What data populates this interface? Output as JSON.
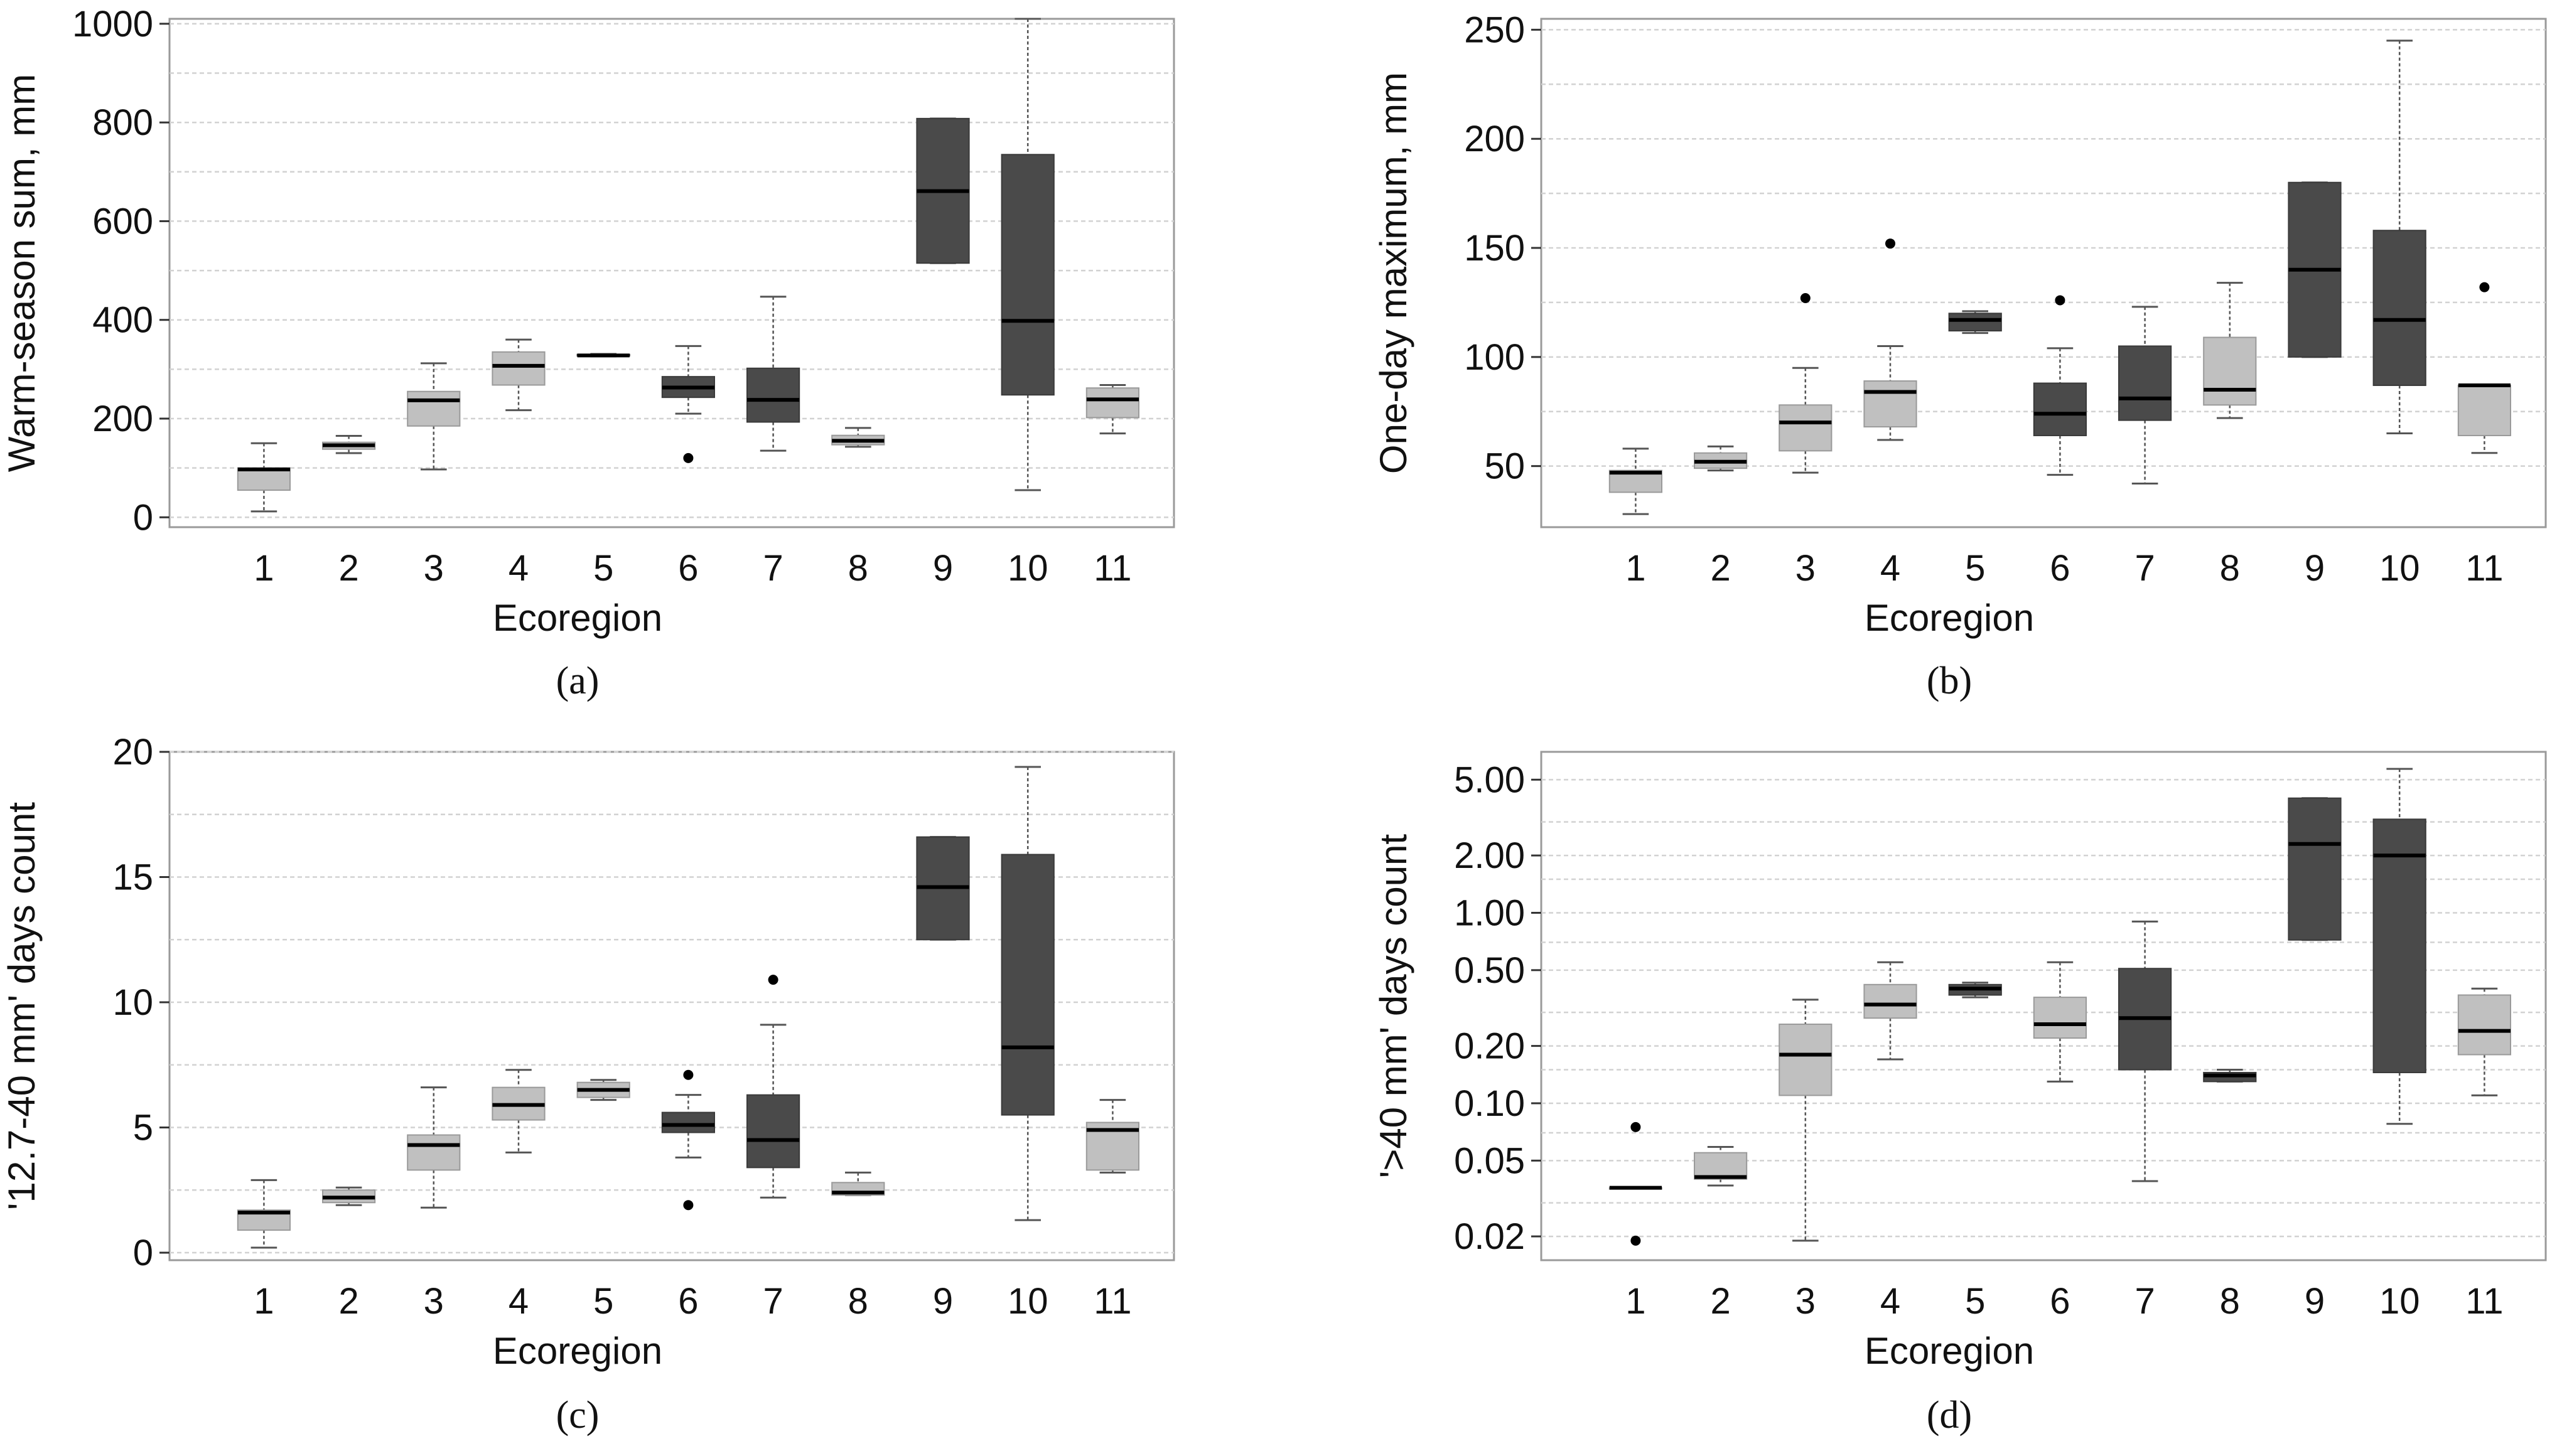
{
  "figure": {
    "captions": [
      "(a)",
      "(b)",
      "(c)",
      "(d)"
    ]
  },
  "colors": {
    "light_box": "#c0c0c0",
    "dark_box": "#4a4a4a",
    "background": "#ffffff",
    "plot_border": "#9a9a9a",
    "grid": "#d2d2d2"
  },
  "chart_data": [
    {
      "panel": "a",
      "type": "boxplot",
      "caption": "(a)",
      "xlabel": "Ecoregion",
      "ylabel": "Warm-season sum, mm",
      "yscale": "linear",
      "ylim": [
        -20,
        1010
      ],
      "yticks": [
        0,
        200,
        400,
        600,
        800,
        1000
      ],
      "ytick_labels": [
        "0",
        "200",
        "400",
        "600",
        "800",
        "1000"
      ],
      "minor_grid": [
        100,
        300,
        500,
        700,
        900
      ],
      "categories": [
        "1",
        "2",
        "3",
        "4",
        "5",
        "6",
        "7",
        "8",
        "9",
        "10",
        "11"
      ],
      "shades": [
        "light",
        "light",
        "light",
        "light",
        "dark",
        "dark",
        "dark",
        "light",
        "dark",
        "dark",
        "light"
      ],
      "boxes": [
        {
          "min": 12,
          "q1": 55,
          "median": 97,
          "q3": 100,
          "max": 150,
          "outliers": []
        },
        {
          "min": 130,
          "q1": 138,
          "median": 146,
          "q3": 152,
          "max": 165,
          "outliers": []
        },
        {
          "min": 97,
          "q1": 185,
          "median": 237,
          "q3": 255,
          "max": 312,
          "outliers": []
        },
        {
          "min": 217,
          "q1": 268,
          "median": 307,
          "q3": 335,
          "max": 360,
          "outliers": []
        },
        {
          "min": 326,
          "q1": 327,
          "median": 328,
          "q3": 330,
          "max": 331,
          "outliers": []
        },
        {
          "min": 210,
          "q1": 243,
          "median": 263,
          "q3": 285,
          "max": 347,
          "outliers": [
            120
          ]
        },
        {
          "min": 135,
          "q1": 193,
          "median": 238,
          "q3": 302,
          "max": 447,
          "outliers": []
        },
        {
          "min": 143,
          "q1": 147,
          "median": 155,
          "q3": 166,
          "max": 181,
          "outliers": []
        },
        {
          "min": 515,
          "q1": 515,
          "median": 661,
          "q3": 808,
          "max": 808,
          "outliers": []
        },
        {
          "min": 55,
          "q1": 248,
          "median": 398,
          "q3": 735,
          "max": 1010,
          "outliers": []
        },
        {
          "min": 170,
          "q1": 202,
          "median": 239,
          "q3": 262,
          "max": 268,
          "outliers": []
        }
      ]
    },
    {
      "panel": "b",
      "type": "boxplot",
      "caption": "(b)",
      "xlabel": "Ecoregion",
      "ylabel": "One-day maximum, mm",
      "yscale": "linear",
      "ylim": [
        22,
        255
      ],
      "yticks": [
        50,
        100,
        150,
        200,
        250
      ],
      "ytick_labels": [
        "50",
        "100",
        "150",
        "200",
        "250"
      ],
      "minor_grid": [
        75,
        125,
        175,
        225
      ],
      "categories": [
        "1",
        "2",
        "3",
        "4",
        "5",
        "6",
        "7",
        "8",
        "9",
        "10",
        "11"
      ],
      "shades": [
        "light",
        "light",
        "light",
        "light",
        "dark",
        "dark",
        "dark",
        "light",
        "dark",
        "dark",
        "light"
      ],
      "boxes": [
        {
          "min": 28,
          "q1": 38,
          "median": 47,
          "q3": 48,
          "max": 58,
          "outliers": []
        },
        {
          "min": 48,
          "q1": 49,
          "median": 52,
          "q3": 56,
          "max": 59,
          "outliers": []
        },
        {
          "min": 47,
          "q1": 57,
          "median": 70,
          "q3": 78,
          "max": 95,
          "outliers": [
            127
          ]
        },
        {
          "min": 62,
          "q1": 68,
          "median": 84,
          "q3": 89,
          "max": 105,
          "outliers": [
            152
          ]
        },
        {
          "min": 111,
          "q1": 112,
          "median": 117,
          "q3": 120,
          "max": 121,
          "outliers": []
        },
        {
          "min": 46,
          "q1": 64,
          "median": 74,
          "q3": 88,
          "max": 104,
          "outliers": [
            126
          ]
        },
        {
          "min": 42,
          "q1": 71,
          "median": 81,
          "q3": 105,
          "max": 123,
          "outliers": []
        },
        {
          "min": 72,
          "q1": 78,
          "median": 85,
          "q3": 109,
          "max": 134,
          "outliers": []
        },
        {
          "min": 100,
          "q1": 100,
          "median": 140,
          "q3": 180,
          "max": 180,
          "outliers": []
        },
        {
          "min": 65,
          "q1": 87,
          "median": 117,
          "q3": 158,
          "max": 245,
          "outliers": []
        },
        {
          "min": 56,
          "q1": 64,
          "median": 87,
          "q3": 87,
          "max": 87,
          "outliers": [
            132
          ]
        }
      ]
    },
    {
      "panel": "c",
      "type": "boxplot",
      "caption": "(c)",
      "xlabel": "Ecoregion",
      "ylabel": "'12.7-40 mm' days count",
      "yscale": "linear",
      "ylim": [
        -0.3,
        20
      ],
      "yticks": [
        0,
        5,
        10,
        15,
        20
      ],
      "ytick_labels": [
        "0",
        "5",
        "10",
        "15",
        "20"
      ],
      "minor_grid": [
        2.5,
        7.5,
        12.5,
        17.5
      ],
      "categories": [
        "1",
        "2",
        "3",
        "4",
        "5",
        "6",
        "7",
        "8",
        "9",
        "10",
        "11"
      ],
      "shades": [
        "light",
        "light",
        "light",
        "light",
        "light",
        "dark",
        "dark",
        "light",
        "dark",
        "dark",
        "light"
      ],
      "boxes": [
        {
          "min": 0.2,
          "q1": 0.9,
          "median": 1.6,
          "q3": 1.7,
          "max": 2.9,
          "outliers": []
        },
        {
          "min": 1.9,
          "q1": 2.0,
          "median": 2.2,
          "q3": 2.5,
          "max": 2.6,
          "outliers": []
        },
        {
          "min": 1.8,
          "q1": 3.3,
          "median": 4.3,
          "q3": 4.7,
          "max": 6.6,
          "outliers": []
        },
        {
          "min": 4.0,
          "q1": 5.3,
          "median": 5.9,
          "q3": 6.6,
          "max": 7.3,
          "outliers": []
        },
        {
          "min": 6.1,
          "q1": 6.2,
          "median": 6.5,
          "q3": 6.8,
          "max": 6.9,
          "outliers": []
        },
        {
          "min": 3.8,
          "q1": 4.8,
          "median": 5.1,
          "q3": 5.6,
          "max": 6.3,
          "outliers": [
            1.9,
            7.1
          ]
        },
        {
          "min": 2.2,
          "q1": 3.4,
          "median": 4.5,
          "q3": 6.3,
          "max": 9.1,
          "outliers": [
            10.9
          ]
        },
        {
          "min": 2.3,
          "q1": 2.3,
          "median": 2.4,
          "q3": 2.8,
          "max": 3.2,
          "outliers": []
        },
        {
          "min": 12.5,
          "q1": 12.5,
          "median": 14.6,
          "q3": 16.6,
          "max": 16.6,
          "outliers": []
        },
        {
          "min": 1.3,
          "q1": 5.5,
          "median": 8.2,
          "q3": 15.9,
          "max": 19.4,
          "outliers": []
        },
        {
          "min": 3.2,
          "q1": 3.3,
          "median": 4.9,
          "q3": 5.2,
          "max": 6.1,
          "outliers": []
        }
      ]
    },
    {
      "panel": "d",
      "type": "boxplot",
      "caption": "(d)",
      "xlabel": "Ecoregion",
      "ylabel": "'>40 mm' days count",
      "yscale": "log",
      "ylim": [
        0.015,
        7.0
      ],
      "yticks": [
        0.02,
        0.05,
        0.1,
        0.2,
        0.5,
        1,
        2,
        5
      ],
      "ytick_labels": [
        "0.02",
        "0.05",
        "0.10",
        "0.20",
        "0.50",
        "1.00",
        "2.00",
        "5.00"
      ],
      "minor_grid": [
        0.03,
        0.07,
        0.15,
        0.3,
        0.7,
        1.5,
        3
      ],
      "categories": [
        "1",
        "2",
        "3",
        "4",
        "5",
        "6",
        "7",
        "8",
        "9",
        "10",
        "11"
      ],
      "shades": [
        "light",
        "light",
        "light",
        "light",
        "dark",
        "light",
        "dark",
        "dark",
        "dark",
        "dark",
        "light"
      ],
      "boxes": [
        {
          "min": 0.036,
          "q1": 0.036,
          "median": 0.036,
          "q3": 0.036,
          "max": 0.036,
          "outliers": [
            0.075,
            0.019
          ]
        },
        {
          "min": 0.037,
          "q1": 0.04,
          "median": 0.041,
          "q3": 0.055,
          "max": 0.059,
          "outliers": []
        },
        {
          "min": 0.019,
          "q1": 0.11,
          "median": 0.18,
          "q3": 0.26,
          "max": 0.35,
          "outliers": []
        },
        {
          "min": 0.17,
          "q1": 0.28,
          "median": 0.33,
          "q3": 0.42,
          "max": 0.55,
          "outliers": []
        },
        {
          "min": 0.36,
          "q1": 0.37,
          "median": 0.4,
          "q3": 0.42,
          "max": 0.43,
          "outliers": []
        },
        {
          "min": 0.13,
          "q1": 0.22,
          "median": 0.26,
          "q3": 0.36,
          "max": 0.55,
          "outliers": []
        },
        {
          "min": 0.039,
          "q1": 0.15,
          "median": 0.28,
          "q3": 0.51,
          "max": 0.9,
          "outliers": []
        },
        {
          "min": 0.13,
          "q1": 0.13,
          "median": 0.14,
          "q3": 0.145,
          "max": 0.15,
          "outliers": []
        },
        {
          "min": 0.72,
          "q1": 0.72,
          "median": 2.3,
          "q3": 4.0,
          "max": 4.0,
          "outliers": []
        },
        {
          "min": 0.078,
          "q1": 0.145,
          "median": 2.0,
          "q3": 3.1,
          "max": 5.7,
          "outliers": []
        },
        {
          "min": 0.11,
          "q1": 0.18,
          "median": 0.24,
          "q3": 0.37,
          "max": 0.4,
          "outliers": []
        }
      ]
    }
  ]
}
